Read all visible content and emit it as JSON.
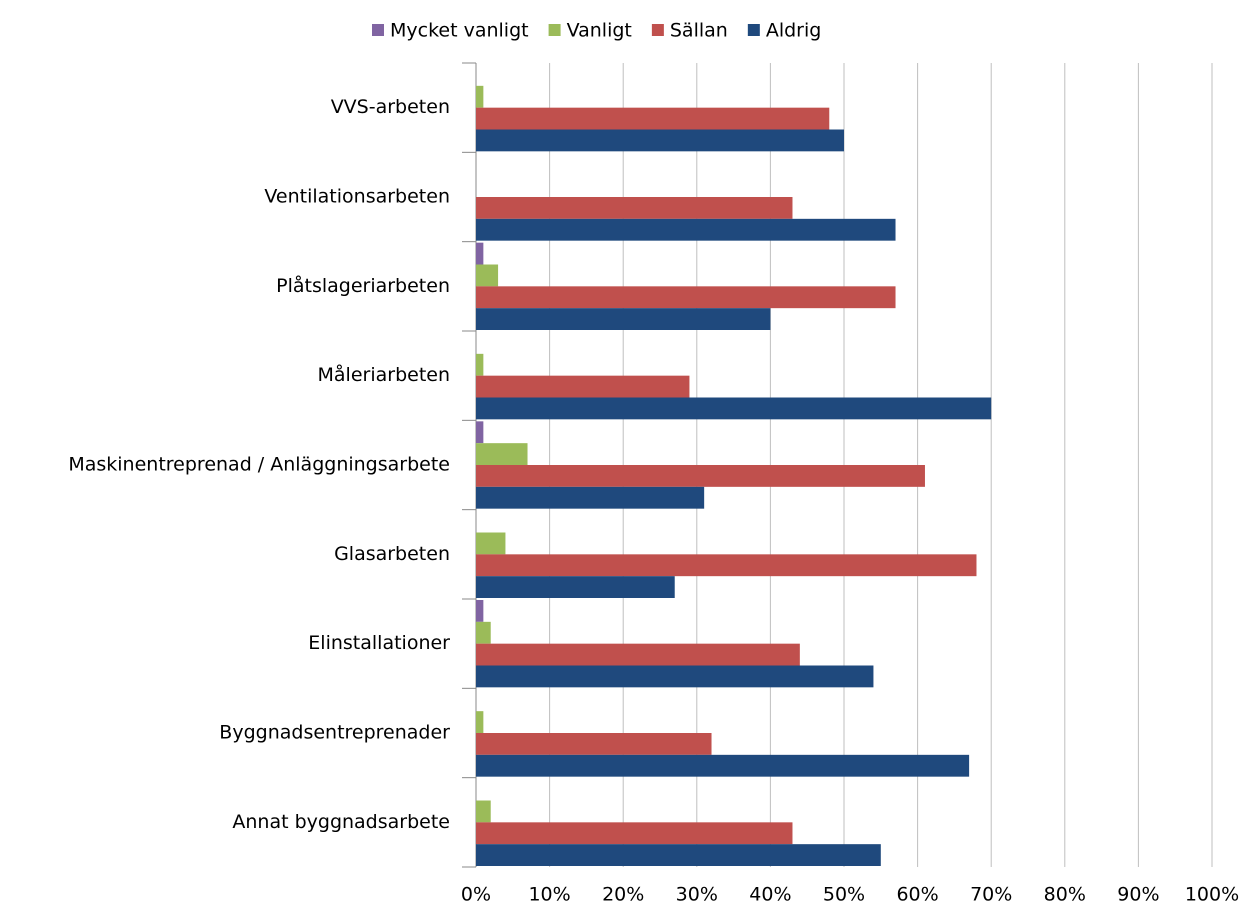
{
  "chart_data": {
    "type": "bar",
    "orientation": "horizontal",
    "categories": [
      "VVS-arbeten",
      "Ventilationsarbeten",
      "Plåtslageriarbeten",
      "Måleriarbeten",
      "Maskinentreprenad / Anläggningsarbete",
      "Glasarbeten",
      "Elinstallationer",
      "Byggnadsentreprenader",
      "Annat byggnadsarbete"
    ],
    "series": [
      {
        "name": "Mycket vanligt",
        "color": "#8064a2",
        "values": [
          0,
          0,
          1,
          0,
          1,
          0,
          1,
          0,
          0
        ]
      },
      {
        "name": "Vanligt",
        "color": "#9bbb59",
        "values": [
          1,
          0,
          3,
          1,
          7,
          4,
          2,
          1,
          2
        ]
      },
      {
        "name": "Sällan",
        "color": "#c0504d",
        "values": [
          48,
          43,
          57,
          29,
          61,
          68,
          44,
          32,
          43
        ]
      },
      {
        "name": "Aldrig",
        "color": "#1f497d",
        "values": [
          50,
          57,
          40,
          70,
          31,
          27,
          54,
          67,
          55
        ]
      }
    ],
    "xlim": [
      0,
      100
    ],
    "xticks": [
      {
        "value": 0,
        "label": "0%"
      },
      {
        "value": 10,
        "label": "10%"
      },
      {
        "value": 20,
        "label": "20%"
      },
      {
        "value": 30,
        "label": "30%"
      },
      {
        "value": 40,
        "label": "40%"
      },
      {
        "value": 50,
        "label": "50%"
      },
      {
        "value": 60,
        "label": "60%"
      },
      {
        "value": 70,
        "label": "70%"
      },
      {
        "value": 80,
        "label": "80%"
      },
      {
        "value": 90,
        "label": "90%"
      },
      {
        "value": 100,
        "label": "100%"
      }
    ],
    "grid": true,
    "legend": "top"
  }
}
